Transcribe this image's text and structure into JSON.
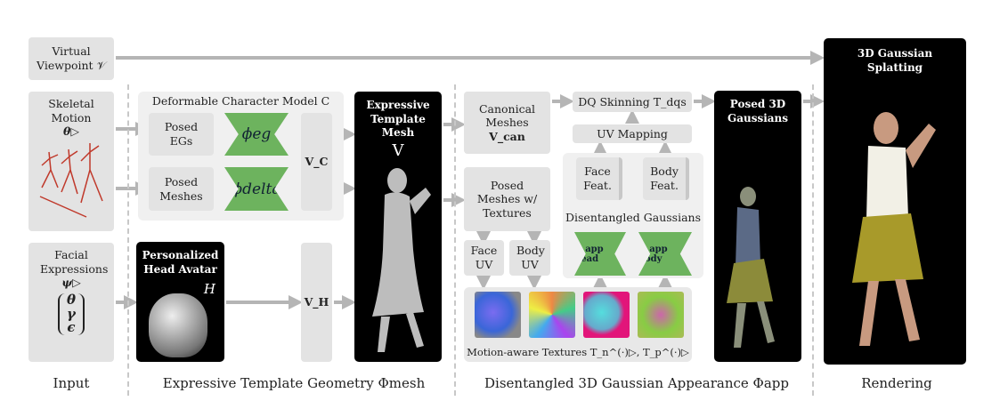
{
  "inputs": {
    "viewpoint": "Virtual Viewpoint 𝒱",
    "skeletal_title": "Skeletal Motion",
    "skeletal_symbol": "θ▷",
    "facial_title": "Facial Expressions",
    "facial_symbol": "ψ▷",
    "facial_vector": [
      "θ",
      "γ",
      "ϵ"
    ]
  },
  "geometry": {
    "group_title": "Deformable Character Model C",
    "posed_egs": "Posed EGs",
    "posed_meshes": "Posed Meshes",
    "phi_eg": "ϕeg",
    "phi_delta": "ϕdelta",
    "vc": "V_C",
    "head_avatar_title": "Personalized Head Avatar",
    "head_avatar_symbol": "H",
    "vh": "V_H",
    "template_title": "Expressive Template Mesh",
    "template_symbol": "V"
  },
  "appearance": {
    "canonical": "Canonical Meshes",
    "canonical_symbol": "V_can",
    "posed_textured": "Posed Meshes w/ Textures",
    "face_uv": "Face UV",
    "body_uv": "Body UV",
    "dq": "DQ Skinning T_dqs",
    "uv_mapping": "UV Mapping",
    "face_feat": "Face Feat.",
    "body_feat": "Body Feat.",
    "disentangled": "Disentangled Gaussians",
    "phi_head": "Φ app head",
    "phi_body": "Φ app body",
    "textures_label": "Motion-aware Textures T_n^(·)▷, T_p^(·)▷",
    "posed_gaussians": "Posed 3D Gaussians"
  },
  "rendering": {
    "title": "3D Gaussian Splatting"
  },
  "sections": {
    "input": "Input",
    "geometry": "Expressive Template Geometry Φmesh",
    "appearance": "Disentangled 3D Gaussian Appearance Φapp",
    "rendering": "Rendering"
  },
  "colors": {
    "box": "#e3e3e3",
    "group": "#f0f0f0",
    "network": "#6db35e",
    "arrow": "#b5b5b5",
    "panel": "#000000"
  }
}
